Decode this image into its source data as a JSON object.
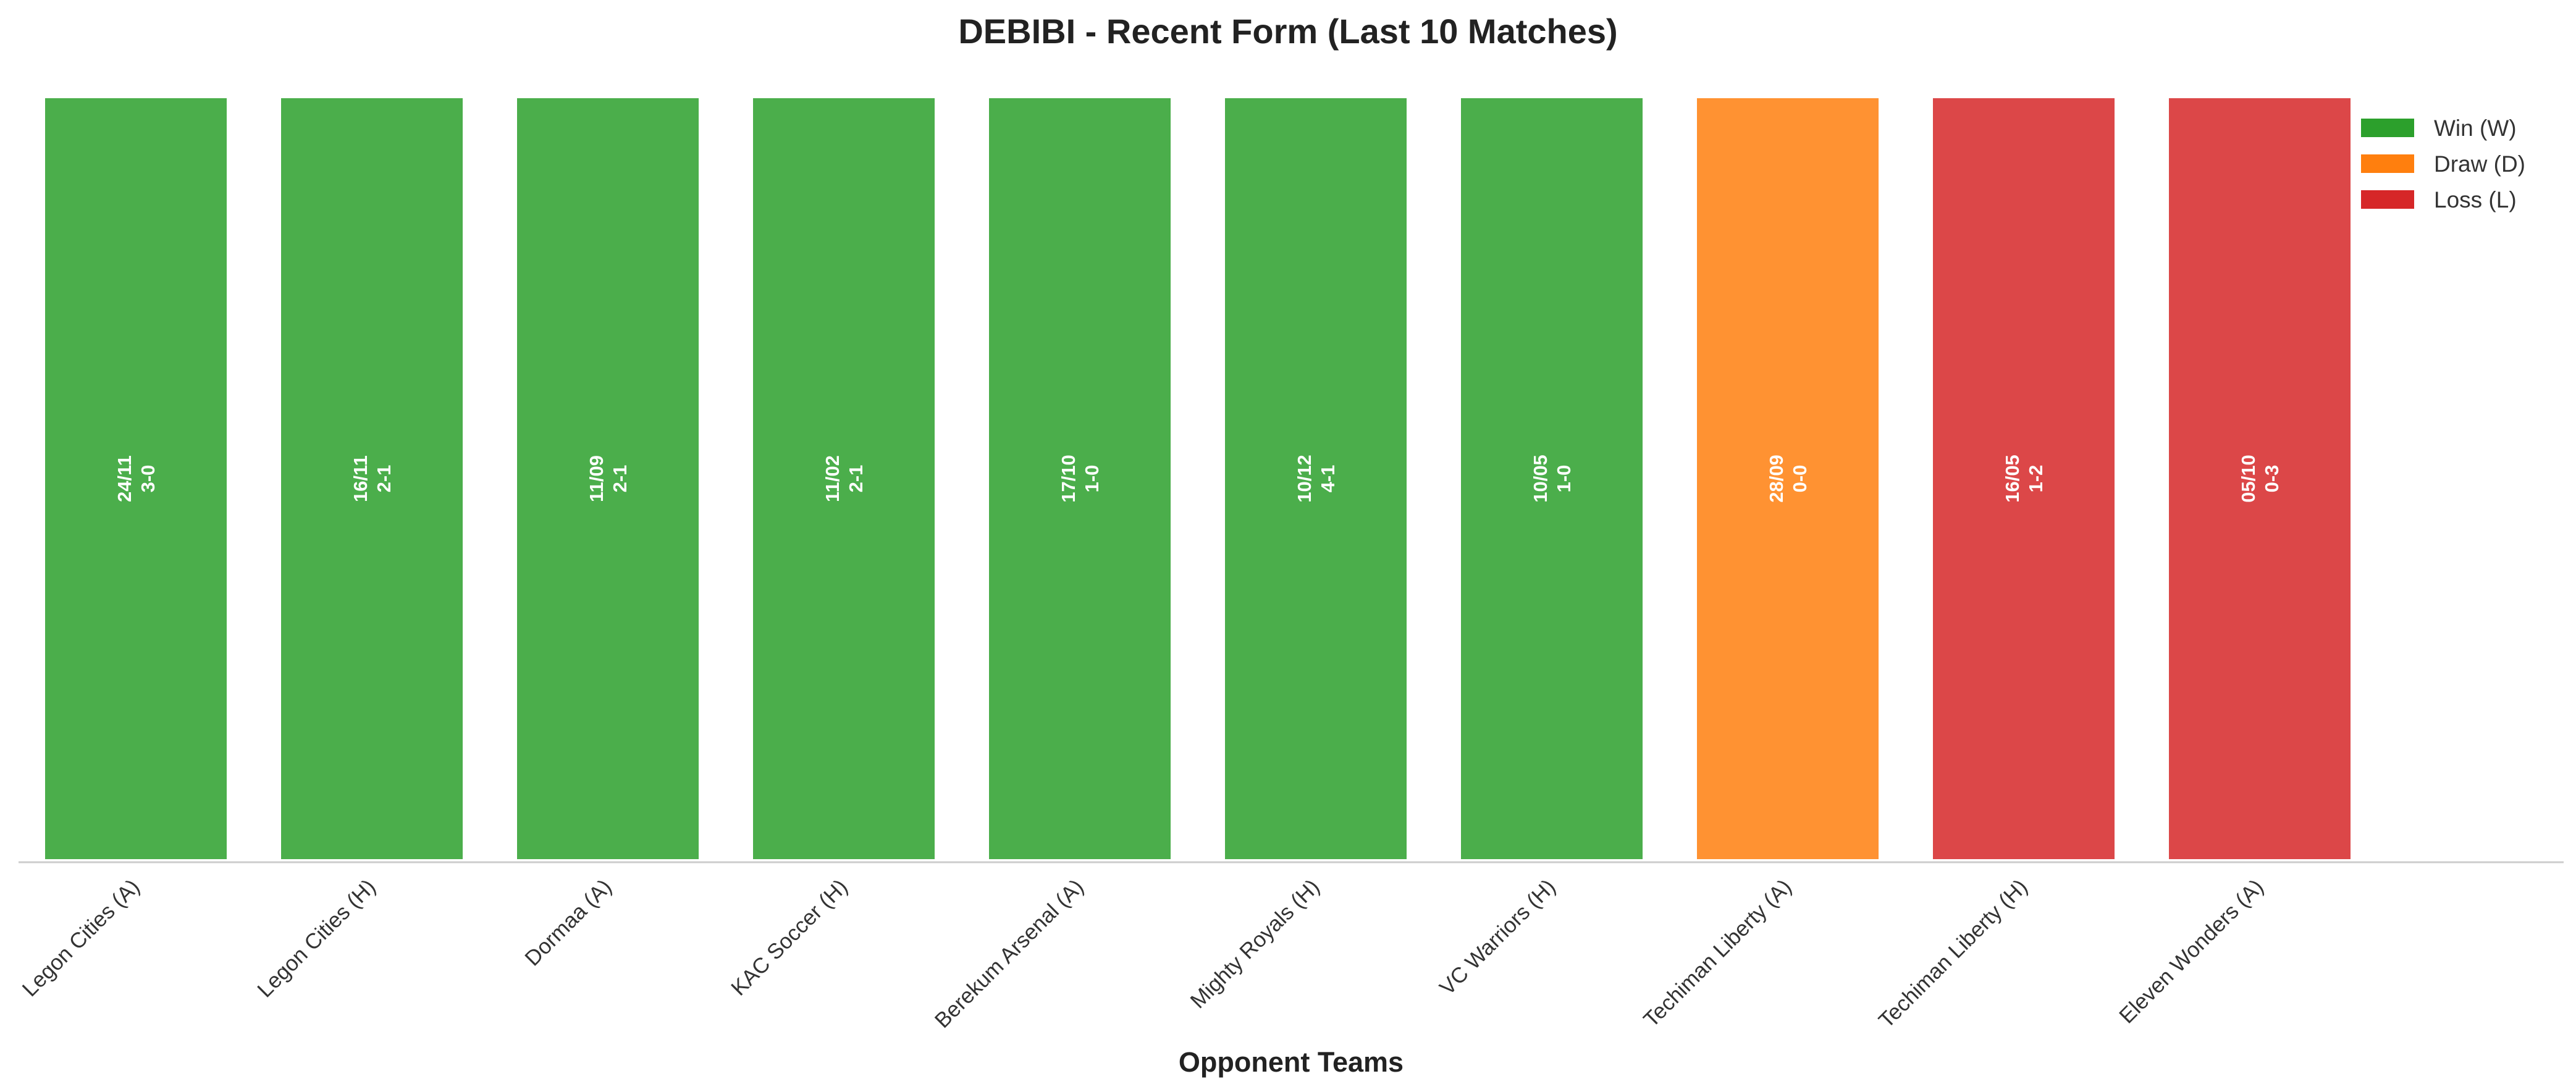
{
  "chart_data": {
    "type": "bar",
    "title": "DEBIBI - Recent Form (Last 10 Matches)",
    "xlabel": "Opponent Teams",
    "ylabel": "",
    "ylim": [
      0,
      1
    ],
    "grid": false,
    "legend_position": "top-right",
    "categories": [
      "Legon Cities (A)",
      "Legon Cities (H)",
      "Dormaa (A)",
      "KAC Soccer (H)",
      "Berekum Arsenal (A)",
      "Mighty Royals (H)",
      "VC Warriors (H)",
      "Techiman Liberty (A)",
      "Techiman Liberty (H)",
      "Eleven Wonders (A)"
    ],
    "values": [
      1,
      1,
      1,
      1,
      1,
      1,
      1,
      1,
      1,
      1
    ],
    "results": [
      "W",
      "W",
      "W",
      "W",
      "W",
      "W",
      "W",
      "D",
      "L",
      "L"
    ],
    "dates": [
      "24/11",
      "16/11",
      "11/09",
      "11/02",
      "17/10",
      "10/12",
      "10/05",
      "28/09",
      "16/05",
      "05/10"
    ],
    "scores": [
      "3-0",
      "2-1",
      "2-1",
      "2-1",
      "1-0",
      "4-1",
      "1-0",
      "0-0",
      "1-2",
      "0-3"
    ],
    "legend": [
      {
        "key": "W",
        "label": "Win (W)",
        "color": "#2ca02c"
      },
      {
        "key": "D",
        "label": "Draw (D)",
        "color": "#ff7f0e"
      },
      {
        "key": "L",
        "label": "Loss (L)",
        "color": "#d62728"
      }
    ]
  }
}
